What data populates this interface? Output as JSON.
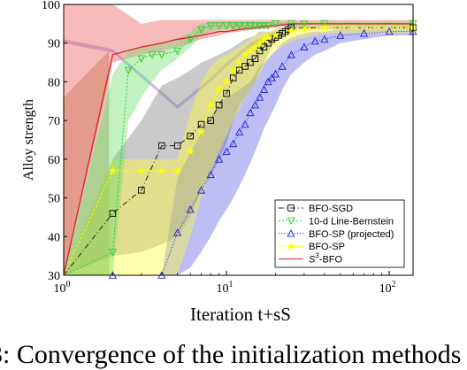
{
  "caption": "3: Convergence of the initialization methods",
  "chart_data": {
    "type": "line",
    "title": "",
    "xlabel": "Iteration t+sS",
    "ylabel": "Alloy strength",
    "xscale": "log",
    "xlim": [
      1,
      140
    ],
    "ylim": [
      30,
      100
    ],
    "xticks": [
      {
        "value": 1,
        "label": "10^0"
      },
      {
        "value": 10,
        "label": "10^1"
      },
      {
        "value": 100,
        "label": "10^2"
      }
    ],
    "yticks": [
      30,
      40,
      50,
      60,
      70,
      80,
      90,
      100
    ],
    "grid": false,
    "legend_position": "bottom-right",
    "series": [
      {
        "name": "BFO-SGD",
        "color": "#222222",
        "dash": "6,3,1,3",
        "marker": "square",
        "marker_color": "#000000",
        "band_color": "#7a7a7a",
        "x": [
          1,
          2,
          3,
          4,
          5,
          6,
          7,
          8,
          9,
          10,
          11,
          12,
          13,
          14,
          15,
          16,
          17,
          18,
          19,
          20,
          21,
          22,
          23,
          24,
          25,
          140
        ],
        "y": [
          30,
          46,
          52,
          63.5,
          63.5,
          66,
          69,
          70,
          74,
          77,
          81,
          83,
          84,
          85,
          86,
          88,
          89,
          90,
          91,
          91.5,
          92,
          92.5,
          93,
          93.5,
          94,
          94
        ],
        "lower": [
          30,
          35,
          36,
          38,
          40,
          45,
          52,
          56,
          60,
          64,
          70,
          74,
          76,
          78,
          80,
          83,
          85,
          87,
          89,
          90,
          91,
          92,
          92.5,
          93,
          93.5,
          93.5
        ],
        "upper": [
          30,
          60,
          70,
          79,
          81,
          83,
          85,
          86,
          87,
          88,
          89,
          90,
          91,
          91.5,
          92,
          93,
          93,
          93,
          93,
          93.5,
          94,
          94,
          94,
          94,
          94.5,
          94.5
        ]
      },
      {
        "name": "10-d Line-Bernstein",
        "color": "#33cc33",
        "dash": "2,2",
        "marker": "triangle-down",
        "marker_color": "#33cc33",
        "band_color": "#66dd66",
        "x": [
          1,
          2,
          2.5,
          3,
          3.5,
          4,
          5,
          6,
          7,
          8,
          9,
          10,
          11,
          12,
          13,
          14,
          15,
          16,
          17,
          18,
          20,
          25,
          30,
          40,
          140
        ],
        "y": [
          30,
          36,
          83,
          86,
          87,
          87,
          88,
          91,
          93.5,
          94.5,
          94.5,
          94.5,
          94.5,
          94.5,
          94.5,
          94.5,
          94.5,
          94.5,
          94.5,
          94.5,
          95,
          95,
          95,
          95,
          95
        ],
        "lower": [
          30,
          30,
          70,
          76,
          80,
          83,
          86,
          89,
          92,
          93,
          93.5,
          93.5,
          93.5,
          93.5,
          93.5,
          93.5,
          93.5,
          94,
          94,
          94,
          94.5,
          94.5,
          94.5,
          94.5,
          94.5
        ],
        "upper": [
          30,
          82,
          88,
          89,
          89.5,
          90,
          91,
          93,
          95,
          95.5,
          95.5,
          95.5,
          95.5,
          95.5,
          95.5,
          95.5,
          95.5,
          95.5,
          95.5,
          95.5,
          95.5,
          95.5,
          95.5,
          95.5,
          95.5
        ]
      },
      {
        "name": "BFO-SP (projected)",
        "color": "#1f1fd6",
        "dash": "1,2",
        "marker": "triangle-up",
        "marker_color": "#1f1fd6",
        "band_color": "#5c5ce6",
        "x": [
          1,
          2,
          4,
          5,
          6,
          7,
          8,
          9,
          10,
          11,
          12,
          13,
          14,
          15,
          16,
          17,
          18,
          19,
          20,
          22,
          25,
          30,
          35,
          40,
          50,
          70,
          100,
          140
        ],
        "y": [
          30,
          30,
          30,
          41,
          47,
          52,
          56,
          60,
          62,
          64,
          67,
          69,
          72,
          74,
          76,
          78,
          80,
          81,
          82,
          84,
          87,
          89,
          90.5,
          91,
          92,
          92.5,
          93,
          93
        ],
        "lower": [
          30,
          30,
          30,
          30,
          32,
          36,
          40,
          44,
          47,
          50,
          53,
          56,
          59,
          62,
          65,
          68,
          70,
          72,
          74,
          78,
          82,
          85,
          87,
          88,
          90,
          91,
          92,
          92
        ],
        "upper": [
          30,
          30,
          30,
          55,
          62,
          67,
          71,
          74,
          76,
          77,
          78,
          79,
          80,
          82,
          84,
          85,
          86,
          87,
          88,
          90,
          91.5,
          92.5,
          93,
          93,
          93.5,
          93.5,
          93.5,
          93.5
        ]
      },
      {
        "name": "BFO-SP",
        "color": "#ffff00",
        "dash": "3,2",
        "marker": "star",
        "marker_color": "#ffff00",
        "band_color": "#ffff33",
        "x": [
          1,
          2,
          3,
          4,
          5,
          6,
          7,
          8,
          9,
          10,
          11,
          12,
          13,
          14,
          15,
          16,
          17,
          18,
          20,
          25,
          30,
          40,
          140
        ],
        "y": [
          30,
          57,
          57,
          57,
          57,
          62,
          67,
          74,
          78,
          80,
          83,
          85,
          87,
          88,
          89,
          90,
          91,
          91.5,
          92,
          93,
          93.5,
          94,
          94
        ],
        "lower": [
          30,
          30,
          30,
          30,
          30,
          40,
          50,
          57,
          62,
          66,
          70,
          73,
          76,
          78,
          80,
          82,
          84,
          86,
          88,
          90.5,
          91.5,
          92.5,
          92.5
        ],
        "upper": [
          30,
          60,
          60,
          60,
          60,
          72,
          80,
          84,
          86,
          87,
          88,
          89,
          90,
          91,
          92,
          92.5,
          93,
          93,
          93.5,
          94,
          94.5,
          95,
          95
        ]
      },
      {
        "name": "S^3-BFO",
        "color": "#e02020",
        "dash": "",
        "marker": "none",
        "marker_color": "#e02020",
        "band_color": "#ee5555",
        "x": [
          1,
          2,
          3,
          4,
          5,
          6,
          7,
          8,
          9,
          10,
          12,
          15,
          20,
          25,
          30,
          40,
          60,
          100,
          140
        ],
        "y": [
          30,
          87,
          89,
          90,
          91,
          91.5,
          92,
          92.5,
          93,
          93,
          93.5,
          94,
          94.5,
          95,
          95,
          95,
          95,
          95,
          95
        ],
        "lower": [
          30,
          85,
          87,
          88,
          89,
          90,
          91,
          91.5,
          92,
          92.5,
          93,
          93.5,
          94,
          94.5,
          94.5,
          94.5,
          94.5,
          94.5,
          94.5
        ],
        "upper": [
          100,
          100,
          95,
          96,
          96,
          96,
          96,
          96,
          96,
          96,
          96,
          96,
          96,
          96,
          96,
          96,
          96,
          96,
          96
        ]
      }
    ],
    "extra_bands": [
      {
        "name_hint": "purple",
        "color": "#8f6fd8",
        "x": [
          1,
          2,
          5,
          8,
          10,
          14,
          20
        ],
        "lower": [
          90,
          87.5,
          73,
          80,
          84,
          89,
          92
        ],
        "upper": [
          91,
          88.5,
          74,
          81,
          85,
          90,
          93
        ]
      },
      {
        "name_hint": "brown",
        "color": "#b38a52",
        "x": [
          1,
          1.9
        ],
        "lower": [
          30,
          30
        ],
        "upper": [
          76,
          88
        ]
      }
    ]
  }
}
